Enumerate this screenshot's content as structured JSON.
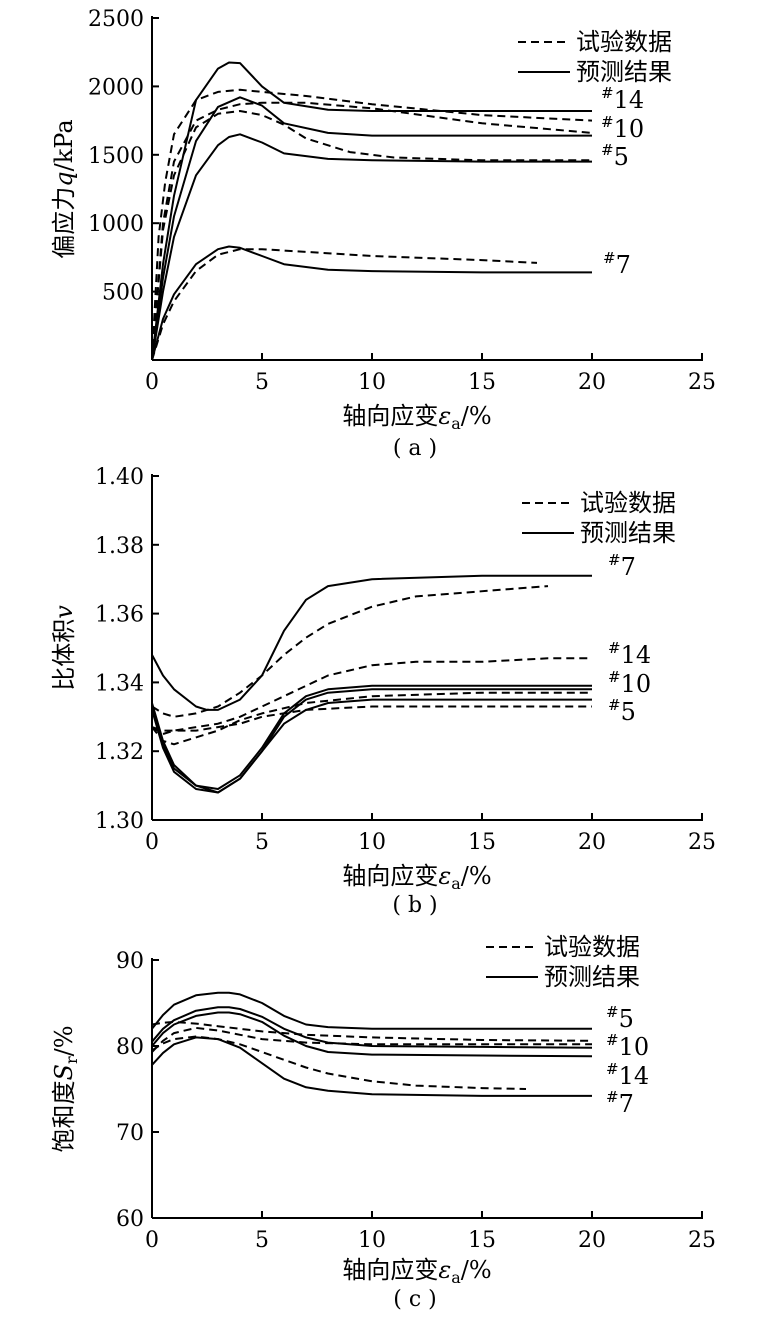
{
  "chart_data": [
    {
      "id": "a",
      "type": "line",
      "caption": "( a )",
      "xlabel": "轴向应变",
      "xsymbol": "ε",
      "xsub": "a",
      "xunit": "/%",
      "ylabel_prefix": "偏应力",
      "ysymbol": "q",
      "yunit": "/kPa",
      "xlim": [
        0,
        25
      ],
      "ylim": [
        0,
        2500
      ],
      "xticks": [
        0,
        5,
        10,
        15,
        20,
        25
      ],
      "yticks": [
        500,
        1000,
        1500,
        2000,
        2500
      ],
      "ytick_labels": [
        "500",
        "1000",
        "1500",
        "2000",
        "2500"
      ],
      "legend": {
        "dashed": "试验数据",
        "solid": "预测结果",
        "position": "top-right"
      },
      "series": [
        {
          "name": "#14",
          "style": "solid",
          "label": "14",
          "x": [
            0,
            0.5,
            1,
            2,
            3,
            3.5,
            4,
            5,
            6,
            8,
            10,
            15,
            20
          ],
          "y": [
            0,
            700,
            1200,
            1900,
            2130,
            2175,
            2170,
            2000,
            1880,
            1830,
            1820,
            1820,
            1820
          ]
        },
        {
          "name": "#14",
          "style": "dashed",
          "label": "",
          "x": [
            0,
            0.3,
            0.6,
            1,
            2,
            3,
            4,
            5,
            7,
            10,
            15,
            20
          ],
          "y": [
            0,
            900,
            1300,
            1650,
            1900,
            1960,
            1975,
            1960,
            1930,
            1870,
            1790,
            1750
          ]
        },
        {
          "name": "#10",
          "style": "solid",
          "label": "10",
          "x": [
            0,
            0.5,
            1,
            2,
            3,
            4,
            5,
            6,
            8,
            10,
            15,
            20
          ],
          "y": [
            0,
            600,
            1050,
            1600,
            1850,
            1920,
            1860,
            1730,
            1660,
            1640,
            1640,
            1640
          ]
        },
        {
          "name": "#10",
          "style": "dashed",
          "label": "",
          "x": [
            0,
            0.5,
            1,
            2,
            3,
            4,
            5,
            7,
            10,
            15,
            20
          ],
          "y": [
            0,
            1000,
            1450,
            1750,
            1830,
            1870,
            1880,
            1880,
            1840,
            1730,
            1660
          ]
        },
        {
          "name": "#5",
          "style": "solid",
          "label": "5",
          "x": [
            0,
            0.5,
            1,
            2,
            3,
            3.5,
            4,
            5,
            6,
            8,
            10,
            15,
            20
          ],
          "y": [
            0,
            500,
            900,
            1350,
            1570,
            1630,
            1650,
            1590,
            1510,
            1470,
            1460,
            1450,
            1450
          ]
        },
        {
          "name": "#5",
          "style": "dashed",
          "label": "",
          "x": [
            0,
            0.5,
            1,
            2,
            3,
            4,
            5,
            6,
            7,
            9,
            11,
            15,
            20
          ],
          "y": [
            0,
            950,
            1350,
            1700,
            1800,
            1820,
            1790,
            1720,
            1620,
            1520,
            1480,
            1460,
            1460
          ]
        },
        {
          "name": "#7",
          "style": "solid",
          "label": "7",
          "x": [
            0,
            0.5,
            1,
            2,
            3,
            3.5,
            4,
            5,
            6,
            8,
            10,
            15,
            20
          ],
          "y": [
            0,
            300,
            480,
            700,
            810,
            830,
            820,
            760,
            700,
            660,
            650,
            640,
            640
          ]
        },
        {
          "name": "#7",
          "style": "dashed",
          "label": "",
          "x": [
            0,
            0.5,
            1,
            2,
            3,
            4,
            5,
            7,
            10,
            15,
            17.5
          ],
          "y": [
            0,
            260,
            430,
            650,
            770,
            810,
            810,
            790,
            760,
            730,
            710
          ]
        }
      ]
    },
    {
      "id": "b",
      "type": "line",
      "caption": "( b )",
      "xlabel": "轴向应变",
      "xsymbol": "ε",
      "xsub": "a",
      "xunit": "/%",
      "ylabel_prefix": "比体积",
      "ysymbol": "v",
      "yunit": "",
      "xlim": [
        0,
        25
      ],
      "ylim": [
        1.3,
        1.4
      ],
      "xticks": [
        0,
        5,
        10,
        15,
        20,
        25
      ],
      "yticks": [
        1.3,
        1.32,
        1.34,
        1.36,
        1.38,
        1.4
      ],
      "ytick_labels": [
        "1.30",
        "1.32",
        "1.34",
        "1.36",
        "1.38",
        "1.40"
      ],
      "legend": {
        "dashed": "试验数据",
        "solid": "预测结果",
        "position": "top-right"
      },
      "series": [
        {
          "name": "#7",
          "style": "solid",
          "label": "7",
          "x": [
            0,
            0.5,
            1,
            2,
            2.5,
            3,
            4,
            5,
            6,
            7,
            8,
            10,
            15,
            20
          ],
          "y": [
            1.348,
            1.342,
            1.338,
            1.333,
            1.332,
            1.332,
            1.335,
            1.342,
            1.355,
            1.364,
            1.368,
            1.37,
            1.371,
            1.371
          ]
        },
        {
          "name": "#7",
          "style": "dashed",
          "label": "",
          "x": [
            0,
            0.5,
            1,
            2,
            3,
            4,
            5,
            6,
            7,
            8,
            10,
            12,
            14,
            16,
            18
          ],
          "y": [
            1.333,
            1.331,
            1.33,
            1.331,
            1.333,
            1.337,
            1.342,
            1.348,
            1.353,
            1.357,
            1.362,
            1.365,
            1.366,
            1.367,
            1.368
          ]
        },
        {
          "name": "#14",
          "style": "solid",
          "label": "14",
          "x": [
            0,
            0.5,
            1,
            2,
            3,
            4,
            5,
            6,
            7,
            8,
            10,
            15,
            20
          ],
          "y": [
            1.334,
            1.323,
            1.316,
            1.31,
            1.308,
            1.312,
            1.32,
            1.33,
            1.335,
            1.337,
            1.338,
            1.338,
            1.338
          ]
        },
        {
          "name": "#14",
          "style": "dashed",
          "label": "",
          "x": [
            0,
            0.5,
            1,
            2,
            3,
            4,
            5,
            6,
            7,
            8,
            10,
            12,
            15,
            18,
            20
          ],
          "y": [
            1.327,
            1.325,
            1.326,
            1.327,
            1.328,
            1.33,
            1.333,
            1.336,
            1.339,
            1.342,
            1.345,
            1.346,
            1.346,
            1.347,
            1.347
          ]
        },
        {
          "name": "#10",
          "style": "solid",
          "label": "10",
          "x": [
            0,
            0.5,
            1,
            2,
            3,
            4,
            5,
            6,
            7,
            8,
            10,
            15,
            20
          ],
          "y": [
            1.333,
            1.322,
            1.315,
            1.31,
            1.309,
            1.313,
            1.321,
            1.331,
            1.336,
            1.338,
            1.339,
            1.339,
            1.339
          ]
        },
        {
          "name": "#10",
          "style": "dashed",
          "label": "",
          "x": [
            0,
            0.5,
            1,
            2,
            3,
            4,
            5,
            7,
            10,
            15,
            20
          ],
          "y": [
            1.327,
            1.323,
            1.322,
            1.324,
            1.326,
            1.329,
            1.331,
            1.334,
            1.336,
            1.337,
            1.337
          ]
        },
        {
          "name": "#5",
          "style": "solid",
          "label": "5",
          "x": [
            0,
            0.5,
            1,
            2,
            3,
            4,
            5,
            6,
            7,
            8,
            10,
            15,
            20
          ],
          "y": [
            1.332,
            1.321,
            1.314,
            1.309,
            1.308,
            1.312,
            1.32,
            1.328,
            1.332,
            1.334,
            1.335,
            1.335,
            1.335
          ]
        },
        {
          "name": "#5",
          "style": "dashed",
          "label": "",
          "x": [
            0,
            0.5,
            1,
            2,
            3,
            4,
            5,
            7,
            10,
            15,
            20
          ],
          "y": [
            1.327,
            1.326,
            1.326,
            1.326,
            1.327,
            1.328,
            1.33,
            1.332,
            1.333,
            1.333,
            1.333
          ]
        }
      ]
    },
    {
      "id": "c",
      "type": "line",
      "caption": "( c )",
      "xlabel": "轴向应变",
      "xsymbol": "ε",
      "xsub": "a",
      "xunit": "/%",
      "ylabel_prefix": "饱和度",
      "ysymbol": "S",
      "ysub": "r",
      "yunit": "/%",
      "xlim": [
        0,
        25
      ],
      "ylim": [
        60,
        90
      ],
      "xticks": [
        0,
        5,
        10,
        15,
        20,
        25
      ],
      "yticks": [
        60,
        70,
        80,
        90
      ],
      "ytick_labels": [
        "60",
        "70",
        "80",
        "90"
      ],
      "legend": {
        "dashed": "试验数据",
        "solid": "预测结果",
        "position": "top-right"
      },
      "series": [
        {
          "name": "#5",
          "style": "solid",
          "label": "5",
          "x": [
            0,
            0.5,
            1,
            2,
            3,
            3.5,
            4,
            5,
            6,
            7,
            8,
            10,
            15,
            20
          ],
          "y": [
            82.0,
            83.6,
            84.8,
            85.9,
            86.2,
            86.2,
            86.0,
            85.0,
            83.5,
            82.5,
            82.2,
            82.0,
            82.0,
            82.0
          ]
        },
        {
          "name": "#5",
          "style": "dashed",
          "label": "",
          "x": [
            0,
            0.5,
            1,
            2,
            3,
            4,
            5,
            7,
            10,
            15,
            20
          ],
          "y": [
            82.5,
            82.7,
            82.8,
            82.6,
            82.3,
            82.0,
            81.7,
            81.3,
            81.0,
            80.7,
            80.6
          ]
        },
        {
          "name": "#10",
          "style": "solid",
          "label": "10",
          "x": [
            0,
            0.5,
            1,
            2,
            3,
            3.5,
            4,
            5,
            6,
            7,
            8,
            10,
            15,
            20
          ],
          "y": [
            80.5,
            82.0,
            83.0,
            84.1,
            84.5,
            84.5,
            84.3,
            83.4,
            82.0,
            81.0,
            80.4,
            80.0,
            79.9,
            79.8
          ]
        },
        {
          "name": "#10",
          "style": "dashed",
          "label": "",
          "x": [
            0,
            0.5,
            1,
            2,
            3,
            4,
            5,
            7,
            10,
            15,
            20
          ],
          "y": [
            79.3,
            80.6,
            81.5,
            82.1,
            81.8,
            81.3,
            80.8,
            80.4,
            80.2,
            80.2,
            80.2
          ]
        },
        {
          "name": "#14",
          "style": "solid",
          "label": "14",
          "x": [
            0,
            0.5,
            1,
            2,
            3,
            3.5,
            4,
            5,
            6,
            7,
            8,
            10,
            15,
            20
          ],
          "y": [
            80.0,
            81.5,
            82.5,
            83.5,
            83.9,
            83.9,
            83.7,
            82.8,
            81.2,
            80.0,
            79.3,
            79.0,
            78.9,
            78.8
          ]
        },
        {
          "name": "#14",
          "style": "dashed",
          "label": "",
          "x": [
            0,
            0.5,
            1,
            2,
            3,
            4,
            5,
            6,
            7,
            8,
            10,
            12,
            15,
            17
          ],
          "y": [
            79.5,
            80.3,
            80.8,
            81.1,
            80.8,
            80.2,
            79.3,
            78.4,
            77.5,
            76.8,
            75.9,
            75.4,
            75.1,
            75.0
          ]
        },
        {
          "name": "#7",
          "style": "solid",
          "label": "7",
          "x": [
            0,
            0.5,
            1,
            2,
            3,
            4,
            5,
            6,
            7,
            8,
            10,
            15,
            20
          ],
          "y": [
            77.8,
            79.2,
            80.2,
            81.0,
            80.8,
            79.8,
            78.0,
            76.2,
            75.2,
            74.8,
            74.4,
            74.2,
            74.2
          ]
        }
      ]
    }
  ]
}
